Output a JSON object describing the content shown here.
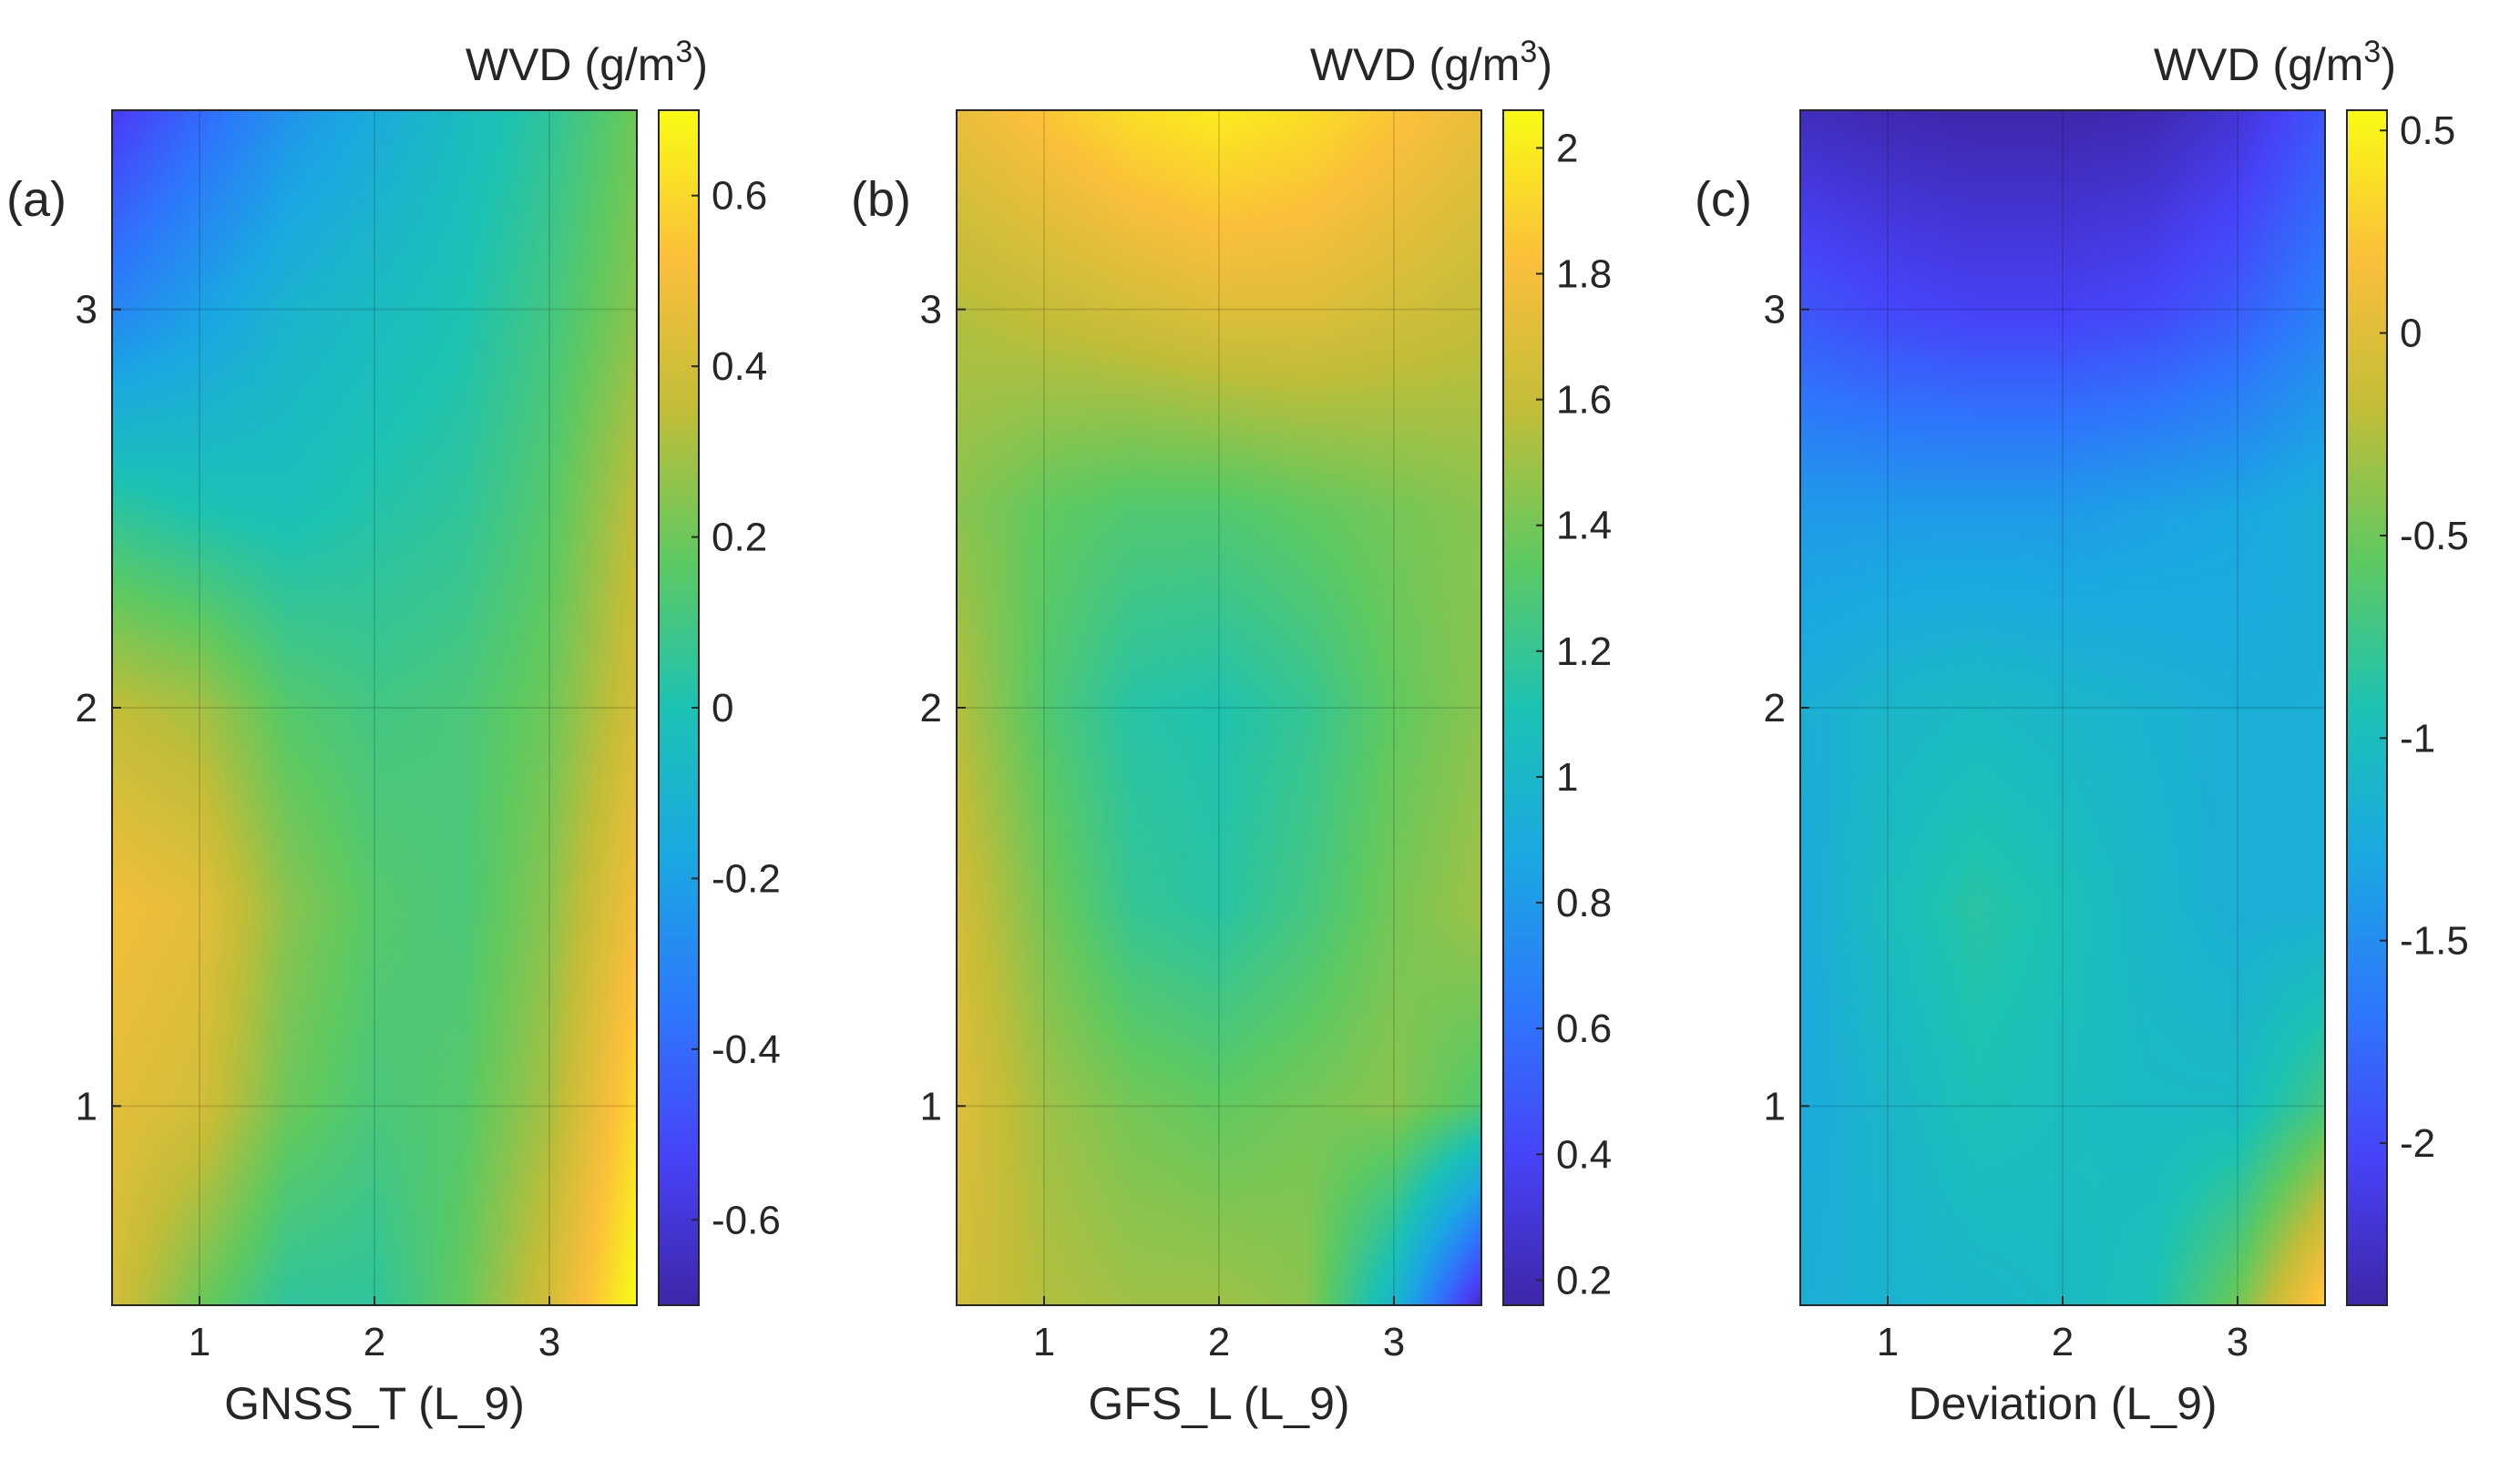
{
  "chart_data": [
    {
      "type": "heatmap",
      "panel_label": "(a)",
      "xlabel": "GNSS_T (L_9)",
      "xticks": [
        "1",
        "2",
        "3"
      ],
      "yticks": [
        "1",
        "2",
        "3"
      ],
      "xlim": [
        0.5,
        3.5
      ],
      "ylim": [
        0.5,
        3.5
      ],
      "colorbar_title": "WVD (g/m",
      "colorbar_title_sup": "3",
      "colorbar_title_end": ")",
      "clim": [
        -0.7,
        0.7
      ],
      "colorbar_ticks": [
        -0.6,
        -0.4,
        -0.2,
        0,
        0.2,
        0.4,
        0.6
      ],
      "colorbar_tick_labels": [
        "-0.6",
        "-0.4",
        "-0.2",
        "0",
        "0.2",
        "0.4",
        "0.6"
      ],
      "grid_rows": 7,
      "grid_cols": 7,
      "z": [
        [
          -0.55,
          -0.4,
          -0.25,
          -0.15,
          -0.05,
          0.05,
          0.2
        ],
        [
          -0.3,
          -0.2,
          -0.1,
          -0.05,
          0.0,
          0.1,
          0.25
        ],
        [
          0.05,
          0.0,
          -0.02,
          0.02,
          0.05,
          0.15,
          0.35
        ],
        [
          0.35,
          0.3,
          0.15,
          0.1,
          0.12,
          0.2,
          0.4
        ],
        [
          0.5,
          0.45,
          0.25,
          0.15,
          0.12,
          0.25,
          0.5
        ],
        [
          0.45,
          0.4,
          0.2,
          0.12,
          0.15,
          0.3,
          0.6
        ],
        [
          0.4,
          0.2,
          0.05,
          0.05,
          0.18,
          0.4,
          0.7
        ]
      ]
    },
    {
      "type": "heatmap",
      "panel_label": "(b)",
      "xlabel": "GFS_L (L_9)",
      "xticks": [
        "1",
        "2",
        "3"
      ],
      "yticks": [
        "1",
        "2",
        "3"
      ],
      "xlim": [
        0.5,
        3.5
      ],
      "ylim": [
        0.5,
        3.5
      ],
      "colorbar_title": "WVD (g/m",
      "colorbar_title_sup": "3",
      "colorbar_title_end": ")",
      "clim": [
        0.16,
        2.06
      ],
      "colorbar_ticks": [
        0.2,
        0.4,
        0.6,
        0.8,
        1,
        1.2,
        1.4,
        1.6,
        1.8,
        2
      ],
      "colorbar_tick_labels": [
        "0.2",
        "0.4",
        "0.6",
        "0.8",
        "1",
        "1.2",
        "1.4",
        "1.6",
        "1.8",
        "2"
      ],
      "grid_rows": 7,
      "grid_cols": 7,
      "z": [
        [
          1.75,
          1.85,
          1.95,
          2.0,
          1.95,
          1.85,
          1.75
        ],
        [
          1.55,
          1.6,
          1.65,
          1.7,
          1.7,
          1.65,
          1.6
        ],
        [
          1.45,
          1.35,
          1.3,
          1.3,
          1.35,
          1.4,
          1.45
        ],
        [
          1.55,
          1.3,
          1.15,
          1.12,
          1.2,
          1.35,
          1.45
        ],
        [
          1.65,
          1.4,
          1.2,
          1.15,
          1.25,
          1.4,
          1.5
        ],
        [
          1.7,
          1.5,
          1.4,
          1.35,
          1.4,
          1.45,
          1.3
        ],
        [
          1.65,
          1.55,
          1.5,
          1.5,
          1.45,
          1.0,
          0.25
        ]
      ]
    },
    {
      "type": "heatmap",
      "panel_label": "(c)",
      "xlabel": "Deviation (L_9)",
      "xticks": [
        "1",
        "2",
        "3"
      ],
      "yticks": [
        "1",
        "2",
        "3"
      ],
      "xlim": [
        0.5,
        3.5
      ],
      "ylim": [
        0.5,
        3.5
      ],
      "colorbar_title": "WVD (g/m",
      "colorbar_title_sup": "3",
      "colorbar_title_end": ")",
      "clim": [
        -2.4,
        0.55
      ],
      "colorbar_ticks": [
        -2,
        -1.5,
        -1,
        -0.5,
        0,
        0.5
      ],
      "colorbar_tick_labels": [
        "-2",
        "-1.5",
        "-1",
        "-0.5",
        "0",
        "0.5"
      ],
      "grid_rows": 7,
      "grid_cols": 7,
      "z": [
        [
          -2.3,
          -2.35,
          -2.38,
          -2.38,
          -2.35,
          -2.2,
          -1.9
        ],
        [
          -1.9,
          -2.0,
          -2.05,
          -2.05,
          -2.0,
          -1.85,
          -1.6
        ],
        [
          -1.4,
          -1.4,
          -1.4,
          -1.4,
          -1.35,
          -1.3,
          -1.2
        ],
        [
          -1.2,
          -1.1,
          -1.05,
          -1.1,
          -1.15,
          -1.2,
          -1.2
        ],
        [
          -1.25,
          -1.0,
          -0.85,
          -0.95,
          -1.1,
          -1.2,
          -1.2
        ],
        [
          -1.25,
          -1.1,
          -0.95,
          -1.0,
          -1.05,
          -1.05,
          -0.7
        ],
        [
          -1.2,
          -1.15,
          -1.1,
          -1.05,
          -0.95,
          -0.5,
          0.3
        ]
      ]
    }
  ]
}
